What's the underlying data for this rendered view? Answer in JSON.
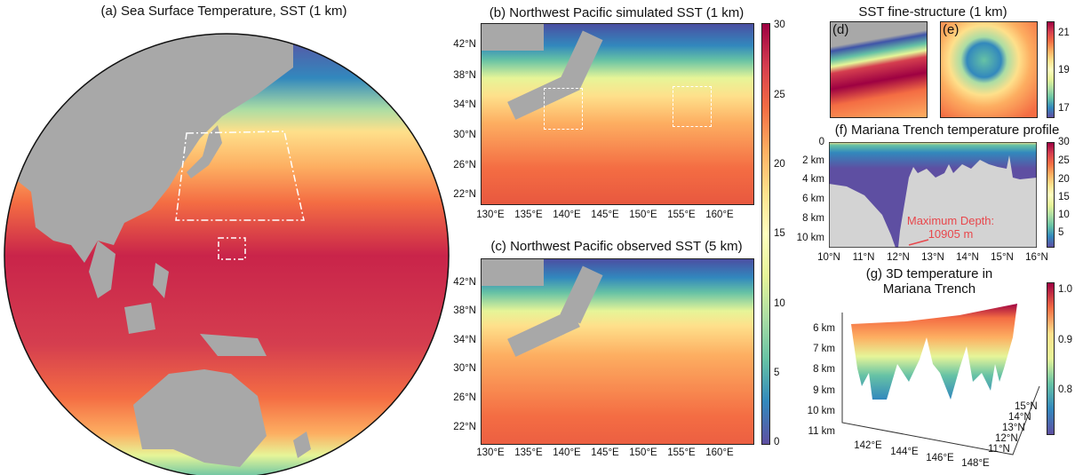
{
  "panel_a": {
    "title": "(a) Sea Surface Temperature, SST (1 km)"
  },
  "panel_b": {
    "title": "(b) Northwest Pacific simulated SST (1 km)"
  },
  "panel_c": {
    "title": "(c)  Northwest Pacific observed SST (5 km)"
  },
  "map_lat_ticks": [
    "42°N",
    "38°N",
    "34°N",
    "30°N",
    "26°N",
    "22°N"
  ],
  "map_lon_ticks": [
    "130°E",
    "135°E",
    "140°E",
    "145°E",
    "150°E",
    "155°E",
    "160°E"
  ],
  "sst_colorbar_ticks": [
    "30",
    "25",
    "20",
    "15",
    "10",
    "5",
    "0"
  ],
  "fine": {
    "title": "SST fine-structure (1 km)",
    "d_label": "(d)",
    "e_label": "(e)",
    "colorbar_ticks": [
      "21",
      "19",
      "17"
    ]
  },
  "panel_f": {
    "title": "(f) Mariana Trench temperature profile",
    "y_ticks": [
      "0",
      "2 km",
      "4 km",
      "6 km",
      "8 km",
      "10 km"
    ],
    "x_ticks": [
      "10°N",
      "11°N",
      "12°N",
      "13°N",
      "14°N",
      "15°N",
      "16°N"
    ],
    "annotation_line1": "Maximum Depth:",
    "annotation_line2": "10905 m",
    "colorbar_ticks": [
      "30",
      "25",
      "20",
      "15",
      "10",
      "5"
    ]
  },
  "panel_g": {
    "title_line1": "(g) 3D temperature in",
    "title_line2": "Mariana Trench",
    "z_ticks": [
      "6 km",
      "7 km",
      "8 km",
      "9 km",
      "10 km",
      "11 km"
    ],
    "lon_ticks": [
      "142°E",
      "144°E",
      "146°E",
      "148°E"
    ],
    "lat_ticks": [
      "15°N",
      "14°N",
      "13°N",
      "12°N",
      "11°N"
    ],
    "colorbar_ticks": [
      "1.0",
      "0.9",
      "0.8"
    ]
  },
  "colors": {
    "annotation": "#e8474c",
    "land": "#a8a8a8"
  }
}
